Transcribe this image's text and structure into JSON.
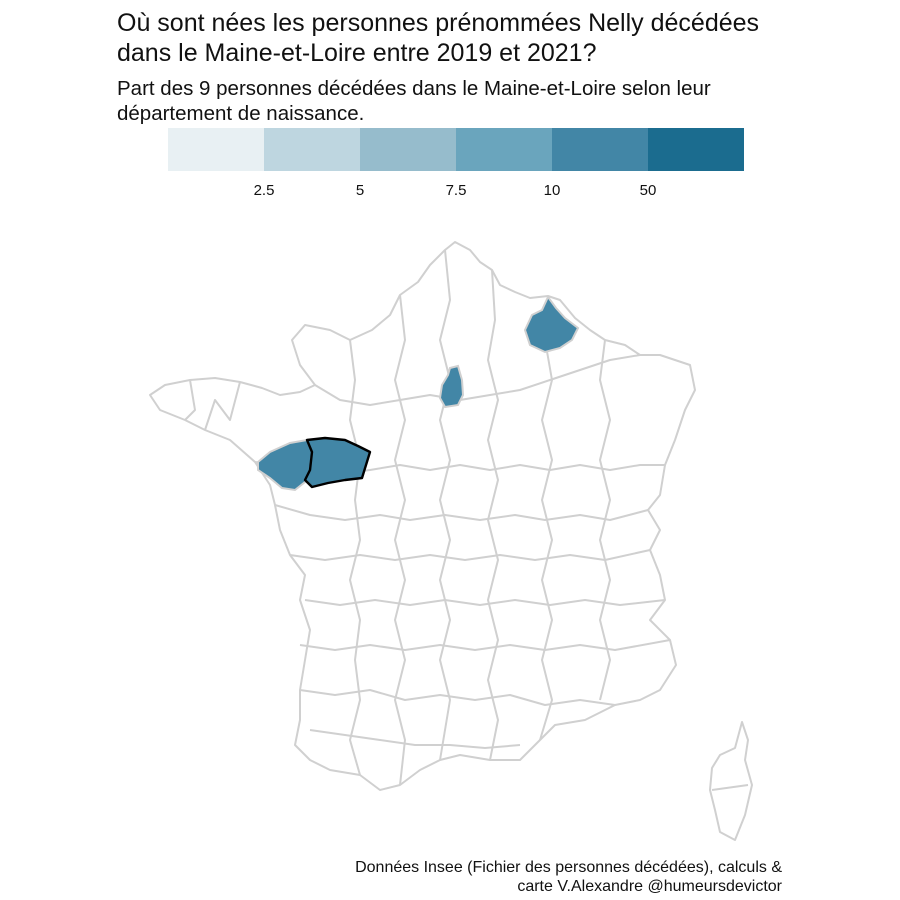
{
  "title_line1": "Où sont nées les personnes prénommées Nelly décédées",
  "title_line2": "dans le Maine-et-Loire entre 2019 et 2021?",
  "subtitle_line1": "Part des 9 personnes décédées dans le Maine-et-Loire selon leur",
  "subtitle_line2": "département de naissance.",
  "legend": {
    "colors": [
      "#e8f0f3",
      "#bed6e0",
      "#96bccc",
      "#6aa5bd",
      "#4286a6",
      "#1b6c8f"
    ],
    "breaks": [
      "2.5",
      "5",
      "7.5",
      "10",
      "50"
    ]
  },
  "map": {
    "outline_color": "#d0d0d0",
    "highlight_color": "#4286a6",
    "colored_departments": [
      "Maine-et-Loire",
      "Loire-Atlantique",
      "Paris",
      "Ardennes"
    ],
    "outlined_department": "Maine-et-Loire"
  },
  "caption_line1": "Données Insee (Fichier des personnes décédées), calculs &",
  "caption_line2": "carte V.Alexandre @humeursdevictor"
}
